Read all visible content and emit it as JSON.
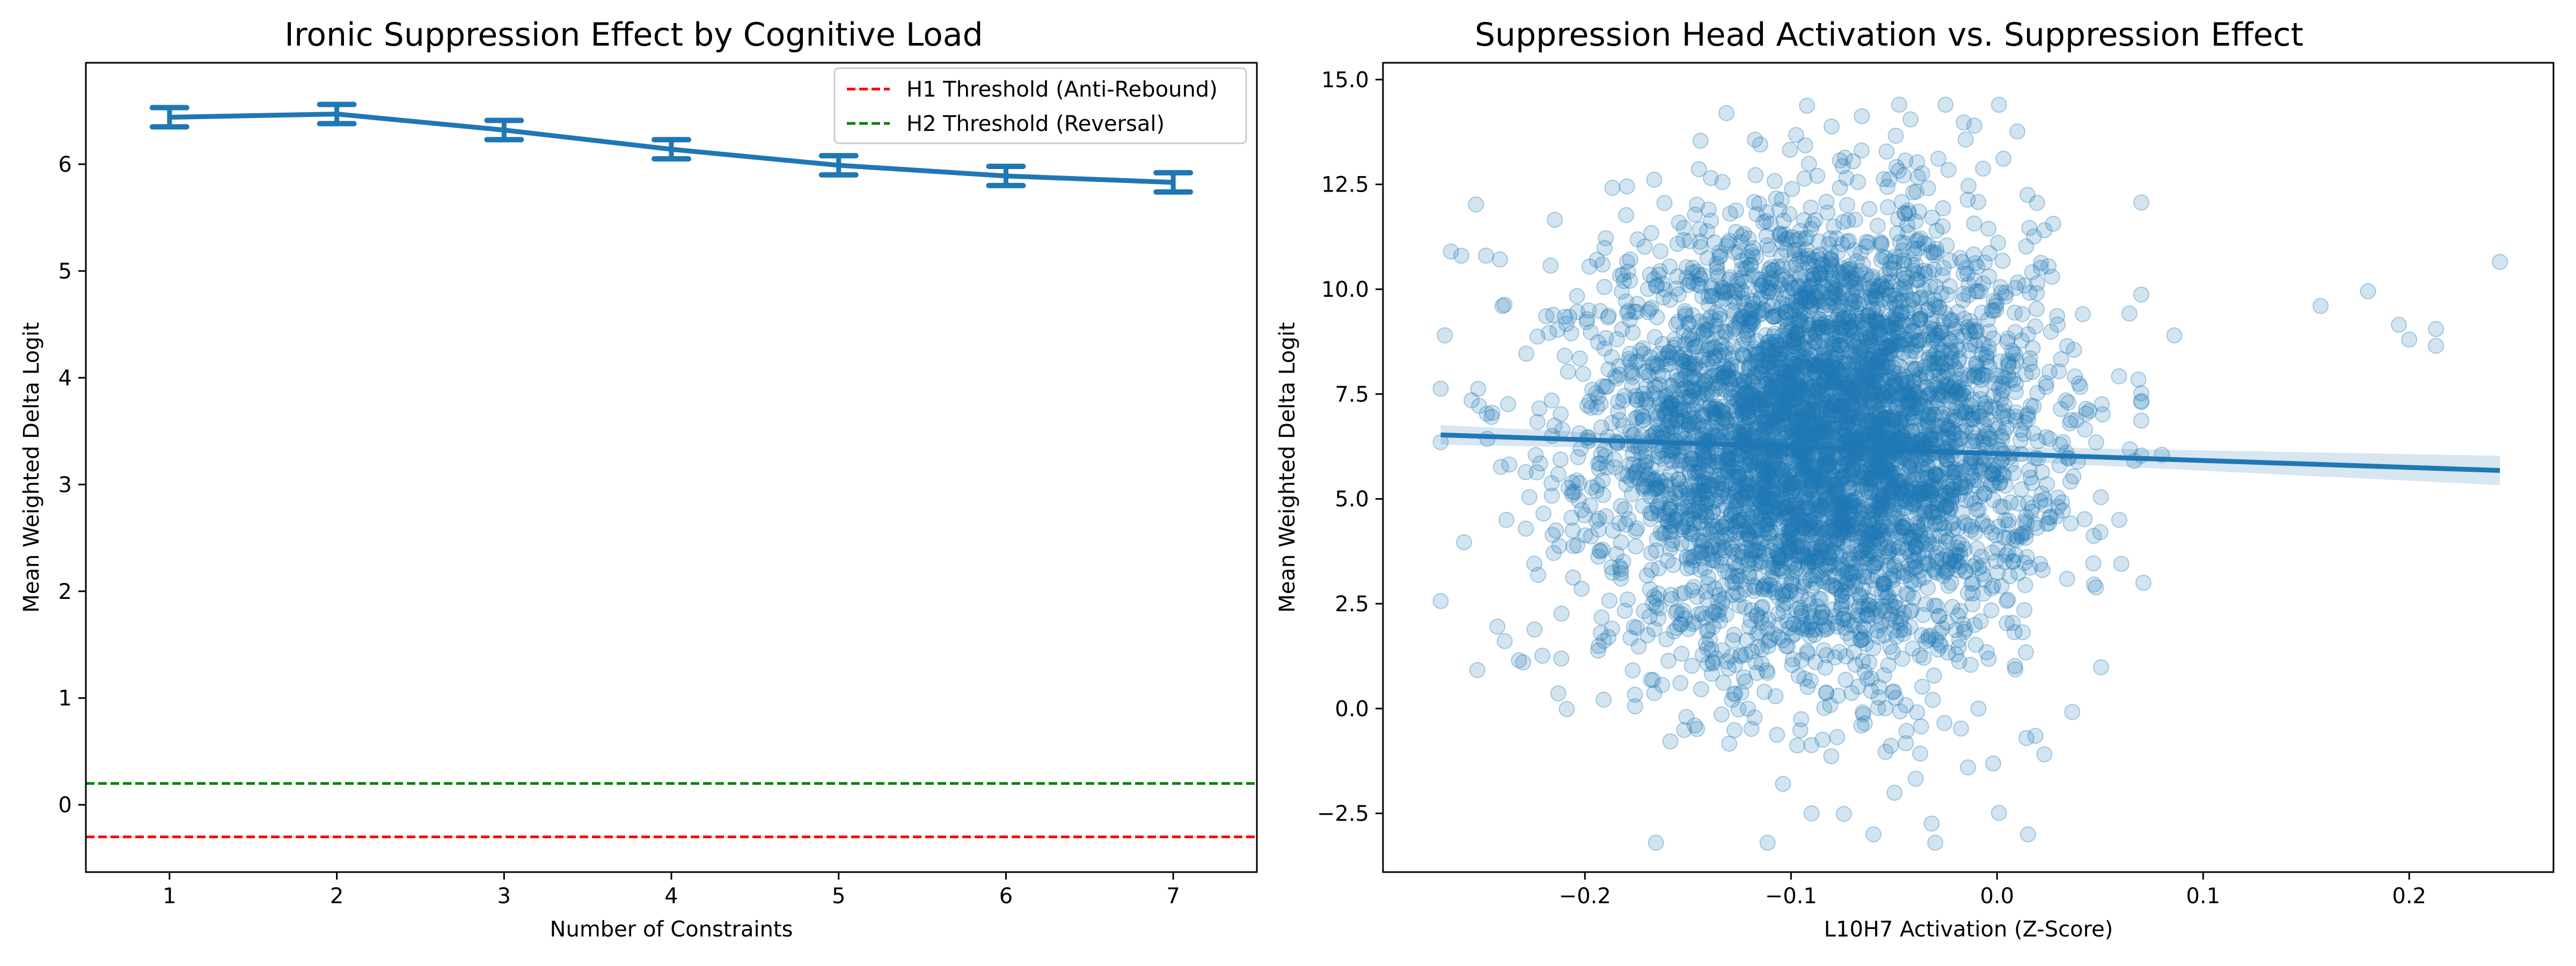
{
  "chart_data": [
    {
      "type": "line",
      "title": "Ironic Suppression Effect by Cognitive Load",
      "xlabel": "Number of Constraints",
      "ylabel": "Mean Weighted Delta Logit",
      "xlim": [
        0.5,
        7.5
      ],
      "ylim": [
        -0.63,
        6.95
      ],
      "x_ticks": [
        1,
        2,
        3,
        4,
        5,
        6,
        7
      ],
      "y_ticks": [
        0,
        1,
        2,
        3,
        4,
        5,
        6
      ],
      "grid": false,
      "legend_position": "top-right",
      "series": [
        {
          "color": "#1f77b4",
          "x": [
            1,
            2,
            3,
            4,
            5,
            6,
            7
          ],
          "values": [
            6.44,
            6.47,
            6.32,
            6.14,
            5.99,
            5.89,
            5.83
          ],
          "error": [
            0.09,
            0.09,
            0.09,
            0.09,
            0.09,
            0.09,
            0.09
          ]
        }
      ],
      "reference_lines": [
        {
          "name": "H1 Threshold (Anti-Rebound)",
          "y": -0.3,
          "color": "#ff0000",
          "style": "dashed"
        },
        {
          "name": "H2 Threshold (Reversal)",
          "y": 0.2,
          "color": "#008000",
          "style": "dashed"
        }
      ]
    },
    {
      "type": "scatter",
      "title": "Suppression Head Activation vs. Suppression Effect",
      "xlabel": "L10H7 Activation (Z-Score)",
      "ylabel": "Mean Weighted Delta Logit",
      "xlim": [
        -0.298,
        0.27
      ],
      "ylim": [
        -3.9,
        15.4
      ],
      "x_ticks": [
        -0.2,
        -0.1,
        0.0,
        0.1,
        0.2
      ],
      "x_tick_labels": [
        "−0.2",
        "−0.1",
        "0.0",
        "0.1",
        "0.2"
      ],
      "y_ticks": [
        -2.5,
        0.0,
        2.5,
        5.0,
        7.5,
        10.0,
        12.5,
        15.0
      ],
      "y_tick_labels": [
        "−2.5",
        "0.0",
        "2.5",
        "5.0",
        "7.5",
        "10.0",
        "12.5",
        "15.0"
      ],
      "grid": false,
      "point_color": "#1f77b4",
      "point_alpha": 0.2,
      "point_count": 5000,
      "x_distribution": {
        "mean": -0.085,
        "sd": 0.052
      },
      "y_distribution": {
        "mean": 6.4,
        "sd": 2.6
      },
      "outliers": [
        [
          0.244,
          10.65
        ],
        [
          0.157,
          9.6
        ],
        [
          0.18,
          9.95
        ],
        [
          0.2,
          8.8
        ],
        [
          0.195,
          9.15
        ],
        [
          0.213,
          9.05
        ],
        [
          0.213,
          8.65
        ],
        [
          0.086,
          8.9
        ],
        [
          0.08,
          6.05
        ],
        [
          0.071,
          3.0
        ],
        [
          -0.27,
          6.35
        ],
        [
          -0.268,
          8.9
        ],
        [
          -0.265,
          10.9
        ],
        [
          -0.255,
          7.35
        ],
        [
          -0.248,
          10.8
        ],
        [
          -0.26,
          10.8
        ],
        [
          -0.24,
          9.6
        ],
        [
          -0.23,
          1.1
        ],
        [
          -0.232,
          1.15
        ],
        [
          -0.025,
          14.4
        ],
        [
          -0.042,
          14.05
        ],
        [
          -0.011,
          13.9
        ],
        [
          -0.03,
          -3.2
        ],
        [
          -0.06,
          -3.0
        ],
        [
          -0.09,
          -2.5
        ],
        [
          0.015,
          -3.0
        ]
      ],
      "regression": {
        "intercept": 6.08,
        "slope": -1.65,
        "x_range": [
          -0.27,
          0.244
        ],
        "ci_start": 0.1,
        "ci_end": 0.35
      }
    }
  ]
}
